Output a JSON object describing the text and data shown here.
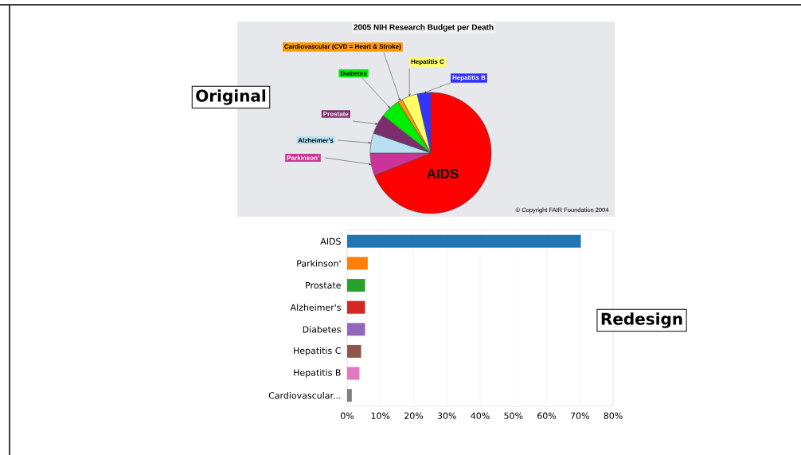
{
  "chart_data": [
    {
      "type": "pie",
      "title": "2005 NIH Research Budget per Death",
      "categories": [
        "AIDS",
        "Parkinson'",
        "Alzheimer's",
        "Prostate",
        "Diabetes",
        "Cardiovascular (CVD = Heart & Stroke)",
        "Hepatitis C",
        "Hepatitis B"
      ],
      "values": [
        69,
        6,
        5.3,
        5.3,
        5.3,
        1.3,
        4.2,
        3.6
      ],
      "colors": [
        "#ff0000",
        "#cc3399",
        "#b8e0f0",
        "#7b2d6e",
        "#00ee00",
        "#ff9900",
        "#ffff66",
        "#3333ff"
      ],
      "annotations": [
        "Original",
        "© Copyright FAIR Foundation 2004"
      ]
    },
    {
      "type": "bar",
      "orientation": "horizontal",
      "categories": [
        "AIDS",
        "Parkinson'",
        "Prostate",
        "Alzheimer's",
        "Diabetes",
        "Hepatitis C",
        "Hepatitis B",
        "Cardiovascular..."
      ],
      "values": [
        70.3,
        6.2,
        5.4,
        5.4,
        5.4,
        4.2,
        3.7,
        1.4
      ],
      "colors": [
        "#1f77b4",
        "#ff7f0e",
        "#2ca02c",
        "#d62728",
        "#9467bd",
        "#8c564b",
        "#e377c2",
        "#7f7f7f"
      ],
      "xlim": [
        0,
        80
      ],
      "xticks": [
        {
          "value": 0,
          "label": "0%"
        },
        {
          "value": 10,
          "label": "10%"
        },
        {
          "value": 20,
          "label": "20%"
        },
        {
          "value": 30,
          "label": "30%"
        },
        {
          "value": 40,
          "label": "40%"
        },
        {
          "value": 50,
          "label": "50%"
        },
        {
          "value": 60,
          "label": "60%"
        },
        {
          "value": 70,
          "label": "70%"
        },
        {
          "value": 80,
          "label": "80%"
        }
      ],
      "grid": "x",
      "annotations": [
        "Redesign"
      ]
    }
  ]
}
